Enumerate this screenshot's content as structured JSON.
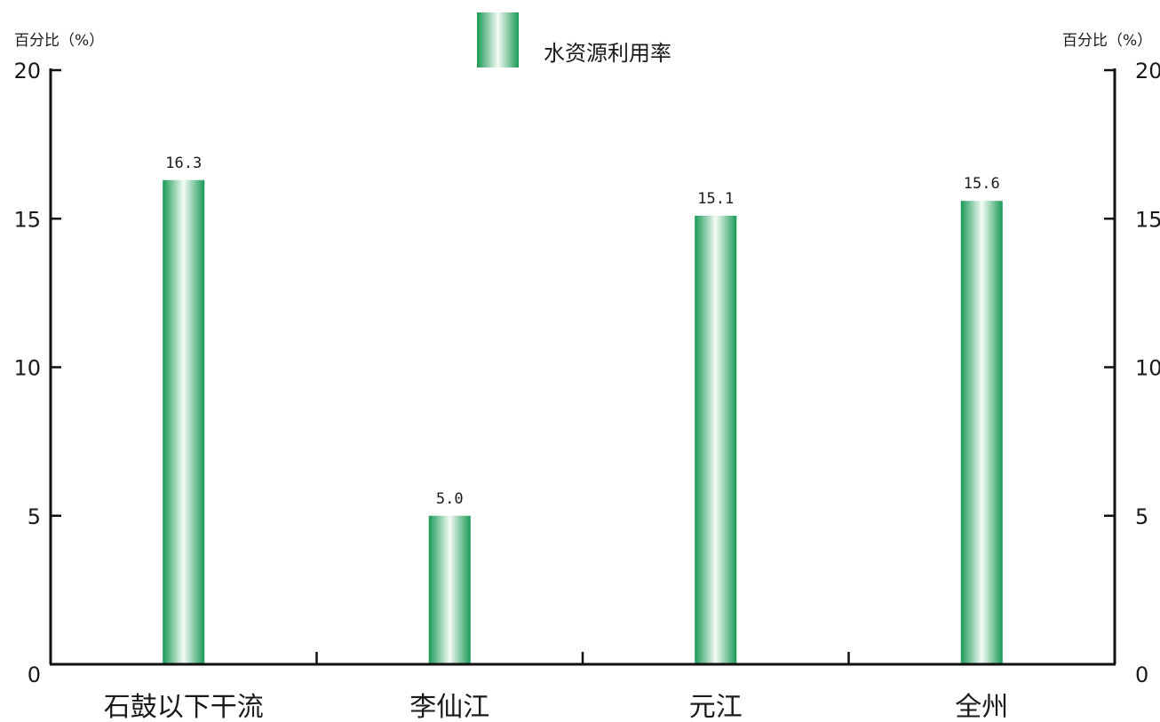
{
  "chart_data": {
    "type": "bar",
    "categories": [
      "石鼓以下干流",
      "李仙江",
      "元江",
      "全州"
    ],
    "series": [
      {
        "name": "水资源利用率",
        "values": [
          16.3,
          5.0,
          15.1,
          15.6
        ]
      }
    ],
    "data_labels": [
      "16.3",
      "5.0",
      "15.1",
      "15.6"
    ],
    "ylabel_left": "百分比（%）",
    "ylabel_right": "百分比（%）",
    "ylim": [
      0,
      20
    ],
    "yticks": [
      0,
      5,
      10,
      15,
      20
    ],
    "grid": false,
    "legend_position": "top-center",
    "colors": {
      "bar_edge": "#1a9a55",
      "bar_light": "#f4fbf6",
      "axis": "#111111"
    }
  }
}
